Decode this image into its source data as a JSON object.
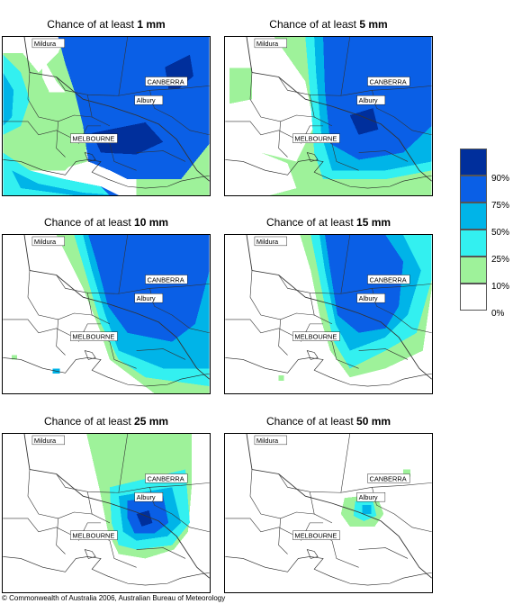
{
  "panels": [
    {
      "title_prefix": "Chance of at least",
      "title_value": "1 mm"
    },
    {
      "title_prefix": "Chance of at least",
      "title_value": "5 mm"
    },
    {
      "title_prefix": "Chance of at least",
      "title_value": "10 mm"
    },
    {
      "title_prefix": "Chance of at least",
      "title_value": "15 mm"
    },
    {
      "title_prefix": "Chance of at least",
      "title_value": "25 mm"
    },
    {
      "title_prefix": "Chance of at least",
      "title_value": "50 mm"
    }
  ],
  "places": {
    "mildura": "Mildura",
    "canberra": "CANBERRA",
    "albury": "Albury",
    "melbourne": "MELBOURNE"
  },
  "legend": {
    "colors": [
      "#002f9c",
      "#0a5fe6",
      "#00b4e8",
      "#33f0f0",
      "#9ef29a",
      "#ffffff"
    ],
    "labels": [
      "90%",
      "75%",
      "50%",
      "25%",
      "10%",
      "0%"
    ]
  },
  "copyright": "© Commonwealth of Australia 2006, Australian Bureau of Meteorology"
}
